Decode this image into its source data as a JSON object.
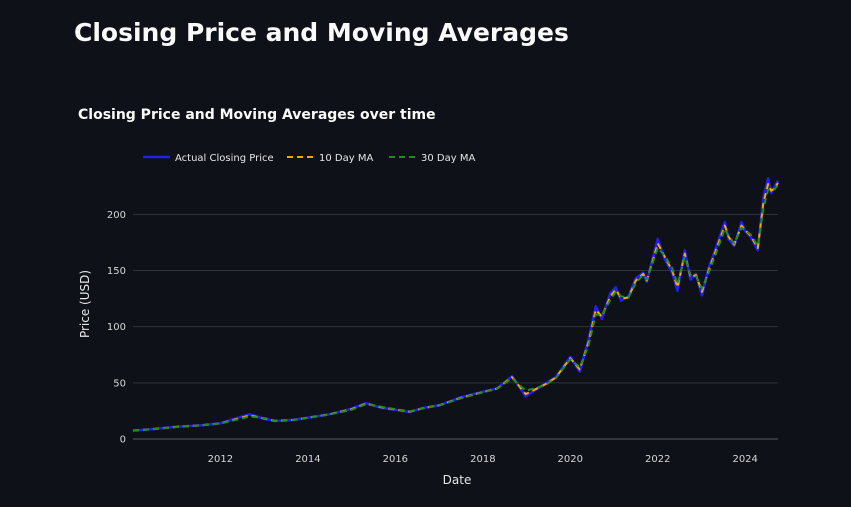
{
  "page": {
    "title": "Closing Price and Moving Averages"
  },
  "chart_data": {
    "type": "line",
    "title": "Closing Price and Moving Averages over time",
    "xlabel": "Date",
    "ylabel": "Price (USD)",
    "xlim": [
      "2010-01-01",
      "2024-10-01"
    ],
    "ylim": [
      -8,
      235
    ],
    "y_ticks": [
      0,
      50,
      100,
      150,
      200
    ],
    "x_ticks": [
      "2012",
      "2014",
      "2016",
      "2018",
      "2020",
      "2022",
      "2024"
    ],
    "grid": true,
    "legend": "top-left, horizontal",
    "x": [
      "2010-01-01",
      "2010-07-01",
      "2011-01-01",
      "2011-07-01",
      "2012-01-01",
      "2012-04-01",
      "2012-09-01",
      "2013-01-01",
      "2013-04-01",
      "2013-09-01",
      "2014-01-01",
      "2014-07-01",
      "2015-01-01",
      "2015-05-01",
      "2015-09-01",
      "2016-01-01",
      "2016-05-01",
      "2016-09-01",
      "2017-01-01",
      "2017-07-01",
      "2018-01-01",
      "2018-05-01",
      "2018-09-01",
      "2018-12-25",
      "2019-06-01",
      "2019-09-01",
      "2020-01-01",
      "2020-03-20",
      "2020-06-01",
      "2020-08-01",
      "2020-09-20",
      "2020-12-01",
      "2021-01-15",
      "2021-03-01",
      "2021-05-01",
      "2021-07-01",
      "2021-09-01",
      "2021-10-01",
      "2022-01-01",
      "2022-03-01",
      "2022-05-01",
      "2022-06-15",
      "2022-08-15",
      "2022-10-01",
      "2022-11-15",
      "2023-01-05",
      "2023-03-01",
      "2023-05-01",
      "2023-07-15",
      "2023-08-15",
      "2023-10-01",
      "2023-12-01",
      "2024-01-01",
      "2024-02-15",
      "2024-04-15",
      "2024-06-01",
      "2024-07-10",
      "2024-08-05",
      "2024-09-01",
      "2024-10-01"
    ],
    "series": [
      {
        "name": "Actual Closing Price",
        "color": "#1f1ff2",
        "dash": "solid",
        "values": [
          7.5,
          9,
          11,
          12,
          14,
          17,
          22,
          18,
          16,
          17,
          19,
          22,
          27,
          32,
          28,
          26,
          24,
          28,
          30,
          37,
          42,
          45,
          56,
          38,
          49,
          55,
          73,
          60,
          88,
          118,
          107,
          130,
          135,
          123,
          127,
          143,
          148,
          140,
          178,
          160,
          148,
          132,
          168,
          142,
          147,
          128,
          152,
          170,
          193,
          178,
          172,
          193,
          185,
          180,
          168,
          215,
          232,
          219,
          224,
          230
        ]
      },
      {
        "name": "10 Day MA",
        "color": "#ffa500",
        "dash": "dashed",
        "values": [
          7.5,
          9,
          10.8,
          12,
          13.9,
          16.5,
          21,
          18.3,
          16.2,
          17,
          19,
          22,
          26.5,
          31.5,
          28.4,
          26.3,
          24.4,
          27.7,
          30,
          36.6,
          41.8,
          45,
          55,
          40,
          48.3,
          54.6,
          72,
          62,
          86,
          115,
          109,
          127,
          133,
          125,
          126,
          141,
          147,
          141,
          174,
          162,
          150,
          135,
          165,
          144,
          146,
          131,
          150,
          168,
          190,
          180,
          173,
          190,
          186,
          181,
          170,
          210,
          227,
          221,
          223,
          228
        ]
      },
      {
        "name": "30 Day MA",
        "color": "#228b22",
        "dash": "dashed",
        "values": [
          7.5,
          8.9,
          10.7,
          11.9,
          13.8,
          16,
          20,
          18.6,
          16.5,
          17,
          18.9,
          21.8,
          26,
          31,
          28.8,
          26.6,
          24.7,
          27.4,
          29.9,
          36.2,
          41.5,
          44.8,
          54,
          43,
          47.5,
          54,
          71,
          64,
          83,
          111,
          110,
          124,
          131,
          127,
          126,
          139,
          146,
          142,
          170,
          163,
          152,
          138,
          162,
          146,
          145,
          134,
          148,
          165,
          187,
          181,
          174,
          188,
          186,
          182,
          172,
          205,
          222,
          222,
          222,
          226
        ]
      }
    ]
  }
}
